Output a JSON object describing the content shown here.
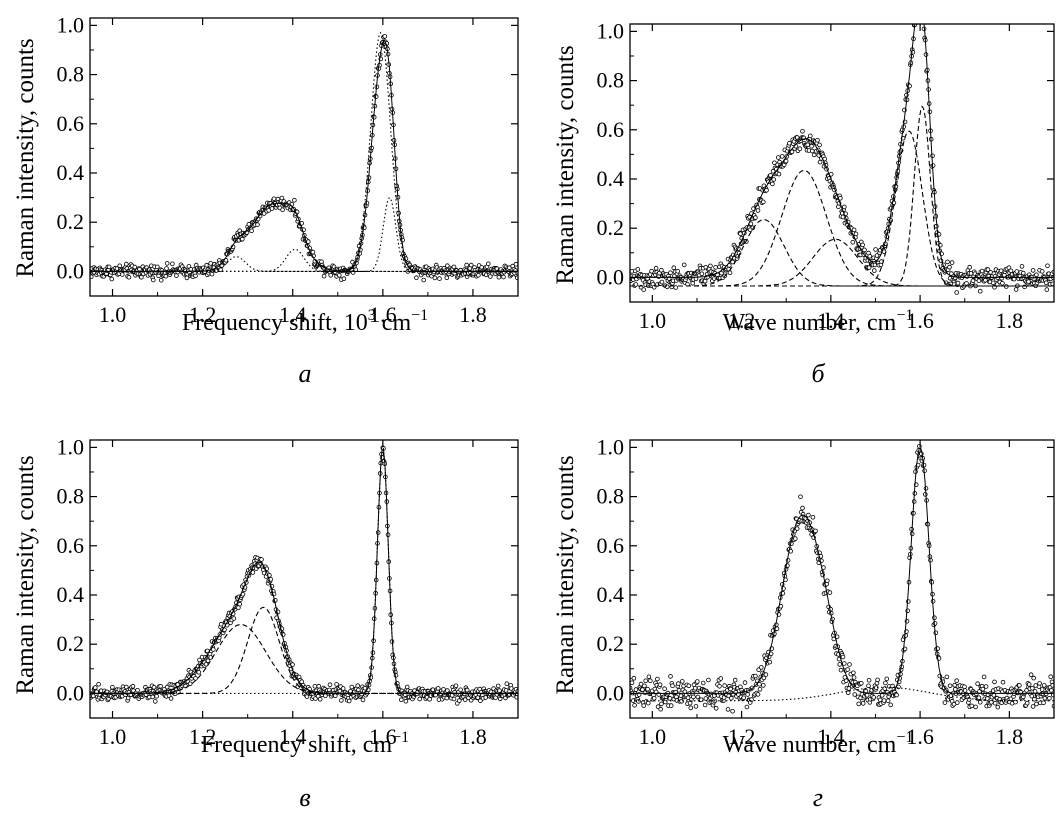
{
  "chart_data": [
    {
      "panel_label": "а",
      "type": "scatter",
      "xlabel": "Frequency shift, 10",
      "xlabel_sup": "3",
      "xlabel_unit": " cm",
      "xlabel_unit_sup": "−1",
      "ylabel": "Raman intensity, counts",
      "xlim": [
        0.95,
        1.9
      ],
      "ylim": [
        -0.1,
        1.03
      ],
      "xticks": [
        1.0,
        1.2,
        1.4,
        1.6,
        1.8
      ],
      "xtick_labels": [
        "1.0",
        "1.2",
        "1.4",
        "1.6",
        "1.8"
      ],
      "yticks": [
        0.0,
        0.2,
        0.4,
        0.6,
        0.8,
        1.0
      ],
      "ytick_labels": [
        "0.0",
        "0.2",
        "0.4",
        "0.6",
        "0.8",
        "1.0"
      ],
      "noise": 0.018,
      "spectrum_peaks": [
        {
          "center": 1.275,
          "amplitude": 0.06,
          "width": 0.02
        },
        {
          "center": 1.355,
          "amplitude": 0.27,
          "width": 0.048
        },
        {
          "center": 1.405,
          "amplitude": 0.09,
          "width": 0.02
        },
        {
          "center": 1.595,
          "amplitude": 0.78,
          "width": 0.022
        },
        {
          "center": 1.615,
          "amplitude": 0.3,
          "width": 0.014
        }
      ],
      "series": [
        {
          "style": "dotted",
          "peak": {
            "center": 1.275,
            "amplitude": 0.06,
            "width": 0.02
          },
          "baseline": 0.0
        },
        {
          "style": "dotted",
          "peak": {
            "center": 1.405,
            "amplitude": 0.09,
            "width": 0.02
          },
          "baseline": 0.0
        },
        {
          "style": "dotted",
          "peak": {
            "center": 1.595,
            "amplitude": 0.97,
            "width": 0.022
          },
          "baseline": 0.0
        },
        {
          "style": "dotted",
          "peak": {
            "center": 1.615,
            "amplitude": 0.3,
            "width": 0.014
          },
          "baseline": 0.0
        }
      ]
    },
    {
      "panel_label": "б",
      "type": "scatter",
      "xlabel": "Wave number, cm",
      "xlabel_sup": "−1",
      "ylabel": "Raman intensity, counts",
      "xlim": [
        0.95,
        1.9
      ],
      "ylim": [
        -0.1,
        1.03
      ],
      "xticks": [
        1.0,
        1.2,
        1.4,
        1.6,
        1.8
      ],
      "xtick_labels": [
        "1.0",
        "1.2",
        "1.4",
        "1.6",
        "1.8"
      ],
      "yticks": [
        0.0,
        0.2,
        0.4,
        0.6,
        0.8,
        1.0
      ],
      "ytick_labels": [
        "0.0",
        "0.2",
        "0.4",
        "0.6",
        "0.8",
        "1.0"
      ],
      "noise": 0.03,
      "spectrum_peaks": [
        {
          "center": 1.25,
          "amplitude": 0.26,
          "width": 0.045
        },
        {
          "center": 1.34,
          "amplitude": 0.46,
          "width": 0.05
        },
        {
          "center": 1.41,
          "amplitude": 0.18,
          "width": 0.05
        },
        {
          "center": 1.575,
          "amplitude": 0.62,
          "width": 0.03
        },
        {
          "center": 1.605,
          "amplitude": 0.72,
          "width": 0.018
        }
      ],
      "series": [
        {
          "style": "dashed",
          "peak": {
            "center": 1.25,
            "amplitude": 0.27,
            "width": 0.045
          },
          "baseline": -0.035
        },
        {
          "style": "dashed",
          "peak": {
            "center": 1.34,
            "amplitude": 0.47,
            "width": 0.05
          },
          "baseline": -0.035
        },
        {
          "style": "dashed",
          "peak": {
            "center": 1.41,
            "amplitude": 0.19,
            "width": 0.05
          },
          "baseline": -0.035
        },
        {
          "style": "dashed",
          "peak": {
            "center": 1.575,
            "amplitude": 0.63,
            "width": 0.03
          },
          "baseline": -0.035
        },
        {
          "style": "dashed",
          "peak": {
            "center": 1.605,
            "amplitude": 0.73,
            "width": 0.018
          },
          "baseline": -0.035
        }
      ]
    },
    {
      "panel_label": "в",
      "type": "scatter",
      "xlabel": "Frequency shift, cm",
      "xlabel_sup": "−1",
      "ylabel": "Raman intensity, counts",
      "xlim": [
        0.95,
        1.9
      ],
      "ylim": [
        -0.1,
        1.03
      ],
      "xticks": [
        1.0,
        1.2,
        1.4,
        1.6,
        1.8
      ],
      "xtick_labels": [
        "1.0",
        "1.2",
        "1.4",
        "1.6",
        "1.8"
      ],
      "yticks": [
        0.0,
        0.2,
        0.4,
        0.6,
        0.8,
        1.0
      ],
      "ytick_labels": [
        "0.0",
        "0.2",
        "0.4",
        "0.6",
        "0.8",
        "1.0"
      ],
      "noise": 0.02,
      "spectrum_peaks": [
        {
          "center": 1.275,
          "amplitude": 0.28,
          "width": 0.06
        },
        {
          "center": 1.335,
          "amplitude": 0.35,
          "width": 0.035
        },
        {
          "center": 1.6,
          "amplitude": 1.0,
          "width": 0.012
        }
      ],
      "series": [
        {
          "style": "dashed",
          "peak": {
            "center": 1.285,
            "amplitude": 0.28,
            "width": 0.055
          },
          "baseline": 0.0
        },
        {
          "style": "dashed",
          "peak": {
            "center": 1.335,
            "amplitude": 0.35,
            "width": 0.035
          },
          "baseline": 0.0
        },
        {
          "style": "dotted",
          "peak": {
            "center": 1.6,
            "amplitude": 1.0,
            "width": 0.012
          },
          "baseline": 0.0
        }
      ]
    },
    {
      "panel_label": "г",
      "type": "scatter",
      "xlabel": "Wave number, cm",
      "xlabel_sup": "−1",
      "ylabel": "Raman intensity, counts",
      "xlim": [
        0.95,
        1.9
      ],
      "ylim": [
        -0.1,
        1.03
      ],
      "xticks": [
        1.0,
        1.2,
        1.4,
        1.6,
        1.8
      ],
      "xtick_labels": [
        "1.0",
        "1.2",
        "1.4",
        "1.6",
        "1.8"
      ],
      "yticks": [
        0.0,
        0.2,
        0.4,
        0.6,
        0.8,
        1.0
      ],
      "ytick_labels": [
        "0.0",
        "0.2",
        "0.4",
        "0.6",
        "0.8",
        "1.0"
      ],
      "noise": 0.04,
      "spectrum_peaks": [
        {
          "center": 1.33,
          "amplitude": 0.68,
          "width": 0.04
        },
        {
          "center": 1.385,
          "amplitude": 0.2,
          "width": 0.03
        },
        {
          "center": 1.6,
          "amplitude": 1.0,
          "width": 0.02
        }
      ],
      "series": [
        {
          "style": "dotted",
          "peak": {
            "center": 1.52,
            "amplitude": 0.055,
            "width": 0.1
          },
          "baseline": -0.03
        }
      ]
    }
  ]
}
